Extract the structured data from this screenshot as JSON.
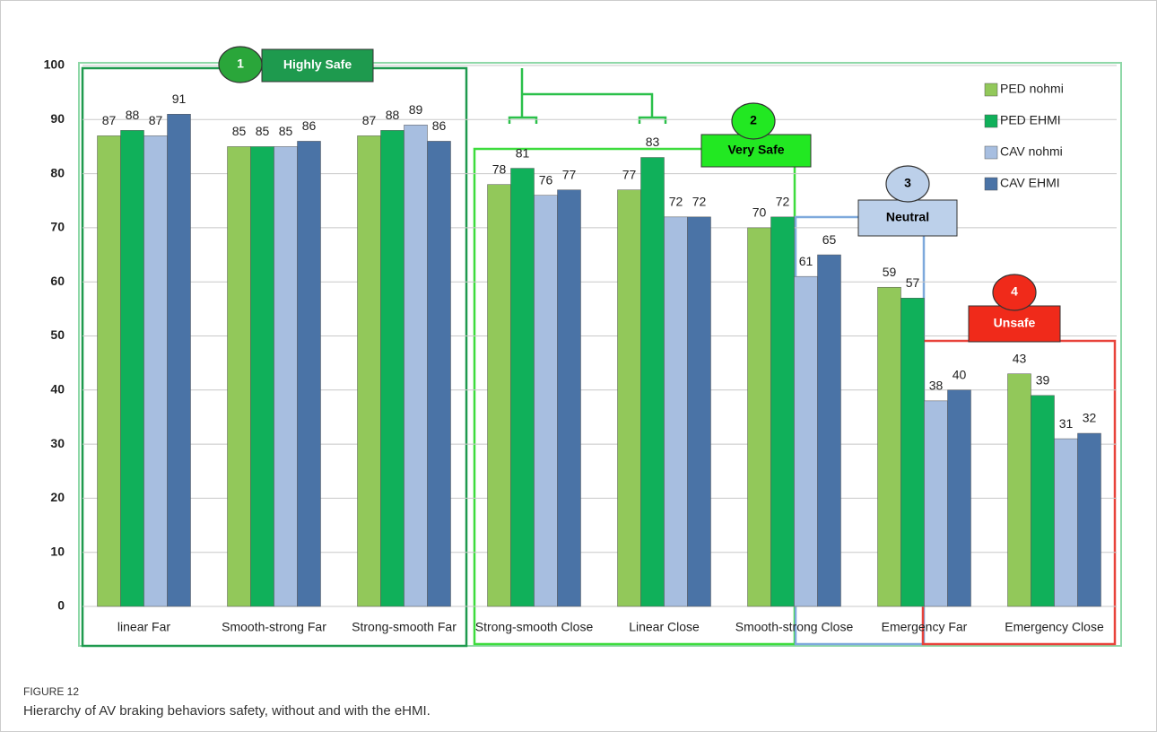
{
  "chart_data": {
    "type": "bar",
    "categories": [
      "linear Far",
      "Smooth-strong Far",
      "Strong-smooth Far",
      "Strong-smooth Close",
      "Linear Close",
      "Smooth-strong Close",
      "Emergency Far",
      "Emergency Close"
    ],
    "series": [
      {
        "name": "PED nohmi",
        "color": "#92c85a",
        "values": [
          87,
          85,
          87,
          78,
          77,
          70,
          59,
          43
        ]
      },
      {
        "name": "PED EHMI",
        "color": "#10b05a",
        "values": [
          88,
          85,
          88,
          81,
          83,
          72,
          57,
          39
        ]
      },
      {
        "name": "CAV nohmi",
        "color": "#a7bee0",
        "values": [
          87,
          85,
          89,
          76,
          72,
          61,
          38,
          31
        ]
      },
      {
        "name": "CAV EHMI",
        "color": "#4a73a6",
        "values": [
          91,
          86,
          86,
          77,
          72,
          65,
          40,
          32
        ]
      }
    ],
    "ylim": [
      0,
      100
    ],
    "yticks": [
      0,
      10,
      20,
      30,
      40,
      50,
      60,
      70,
      80,
      90,
      100
    ],
    "grid": true,
    "legend": "upper right",
    "annotations": [
      {
        "number": "1",
        "label": "Highly Safe"
      },
      {
        "number": "2",
        "label": "Very Safe"
      },
      {
        "number": "3",
        "label": "Neutral"
      },
      {
        "number": "4",
        "label": "Unsafe"
      }
    ]
  },
  "figure_label": "FIGURE 12",
  "caption": "Hierarchy of AV braking behaviors safety, without and with the eHMI."
}
